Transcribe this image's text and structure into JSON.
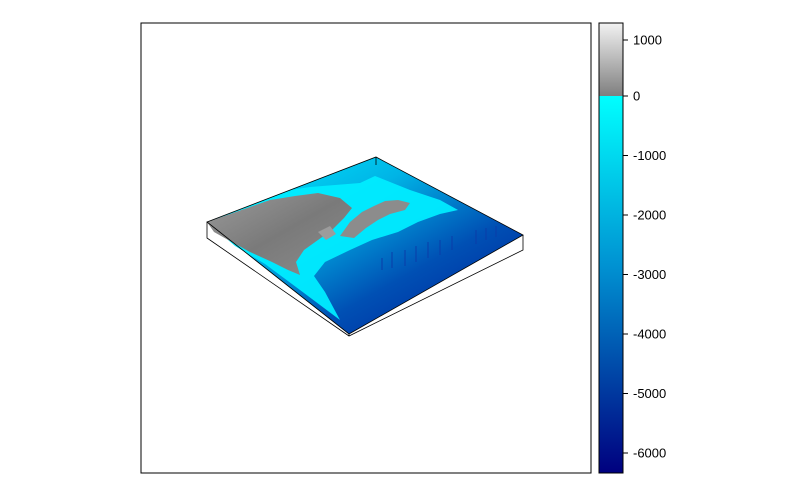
{
  "chart_data": {
    "type": "heatmap",
    "subtype": "3d-perspective-surface",
    "title": "",
    "xlabel": "",
    "ylabel": "",
    "z_range": [
      -6400,
      1250
    ],
    "legend_placement": "right",
    "grid": false,
    "colorbar": {
      "ticks": [
        1000,
        0,
        -1000,
        -2000,
        -3000,
        -4000,
        -5000,
        -6000
      ],
      "tick_labels": [
        "1000",
        "0",
        "-1000",
        "-2000",
        "-3000",
        "-4000",
        "-5000",
        "-6000"
      ],
      "land_colors": {
        "high": "#f2f2f2",
        "low": "#7f7f7f"
      },
      "sea_colors": {
        "shallow": "#00ffff",
        "mid": "#0092d2",
        "deep": "#00007f"
      }
    }
  }
}
